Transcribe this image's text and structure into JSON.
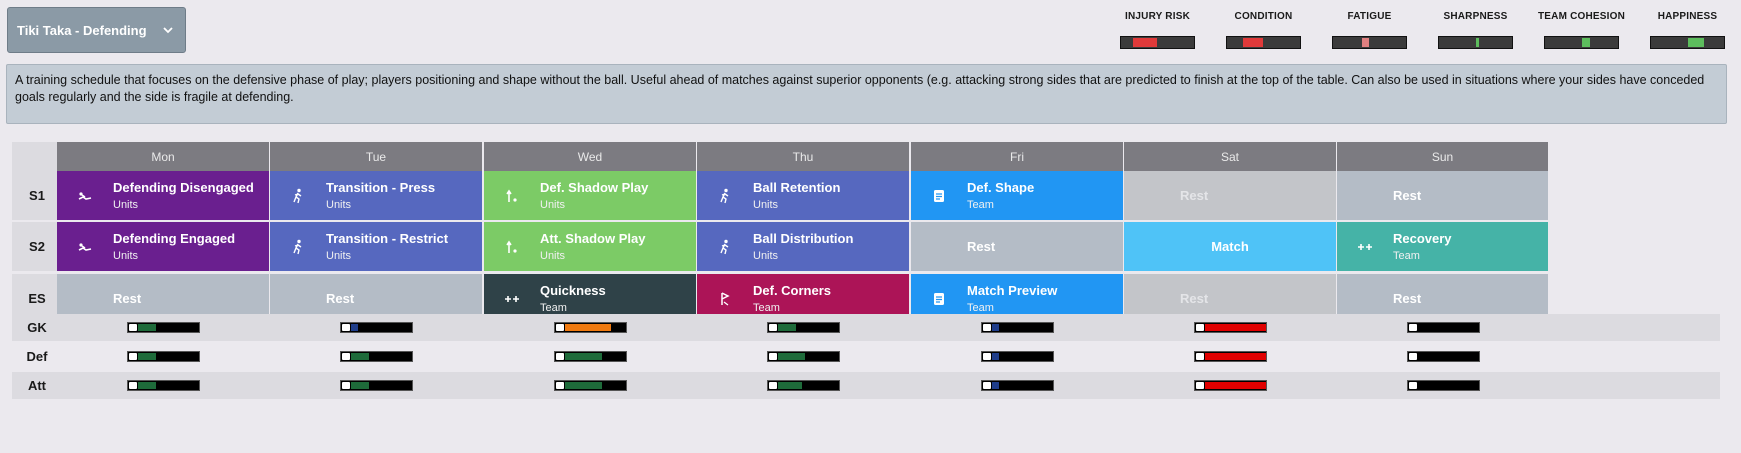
{
  "schedule_selector": {
    "label": "Tiki Taka - Defending"
  },
  "metrics": [
    {
      "label": "INJURY RISK",
      "segments": [
        {
          "from": 0.17,
          "to": 0.5,
          "color": "#e03a3a"
        }
      ]
    },
    {
      "label": "CONDITION",
      "segments": [
        {
          "from": 0.22,
          "to": 0.5,
          "color": "#e03a3a"
        }
      ]
    },
    {
      "label": "FATIGUE",
      "segments": [
        {
          "from": 0.4,
          "to": 0.5,
          "color": "#e08080"
        }
      ]
    },
    {
      "label": "SHARPNESS",
      "segments": [
        {
          "from": 0.5,
          "to": 0.55,
          "color": "#5dbd5d"
        }
      ]
    },
    {
      "label": "TEAM COHESION",
      "segments": [
        {
          "from": 0.5,
          "to": 0.62,
          "color": "#5dbd5d"
        }
      ]
    },
    {
      "label": "HAPPINESS",
      "segments": [
        {
          "from": 0.5,
          "to": 0.72,
          "color": "#5dbd5d"
        }
      ]
    }
  ],
  "description": "A training schedule that focuses on the defensive phase of play; players positioning and shape without the ball. Useful ahead of matches against superior opponents (e.g. attacking strong sides that are predicted to finish at the top of the table. Can also be used in situations where your sides have conceded goals regularly and the side is fragile at defending.",
  "days": [
    "Mon",
    "Tue",
    "Wed",
    "Thu",
    "Fri",
    "Sat",
    "Sun"
  ],
  "session_rows": [
    {
      "label": "S1",
      "cells": [
        {
          "title": "Defending Disengaged",
          "sub": "Units",
          "icon": "defending-icon",
          "color": "#6a1f8f"
        },
        {
          "title": "Transition - Press",
          "sub": "Units",
          "icon": "running-player-icon",
          "color": "#5668bf"
        },
        {
          "title": "Def. Shadow Play",
          "sub": "Units",
          "icon": "shadow-play-icon",
          "color": "#7ccb66"
        },
        {
          "title": "Ball Retention",
          "sub": "Units",
          "icon": "running-player-icon",
          "color": "#5668bf"
        },
        {
          "title": "Def. Shape",
          "sub": "Team",
          "icon": "tactics-board-icon",
          "color": "#2196f3"
        },
        {
          "title": "Rest",
          "sub": "",
          "icon": "",
          "color": "#c3c5c9",
          "textColor": "#e4e5e8"
        },
        {
          "title": "Rest",
          "sub": "",
          "icon": "",
          "color": "#b4bcc6"
        }
      ]
    },
    {
      "label": "S2",
      "cells": [
        {
          "title": "Defending Engaged",
          "sub": "Units",
          "icon": "defending-icon",
          "color": "#6a1f8f"
        },
        {
          "title": "Transition - Restrict",
          "sub": "Units",
          "icon": "running-player-icon",
          "color": "#5668bf"
        },
        {
          "title": "Att. Shadow Play",
          "sub": "Units",
          "icon": "shadow-play-icon",
          "color": "#7ccb66"
        },
        {
          "title": "Ball Distribution",
          "sub": "Units",
          "icon": "running-player-icon",
          "color": "#5668bf"
        },
        {
          "title": "Rest",
          "sub": "",
          "icon": "",
          "color": "#b4bcc6"
        },
        {
          "title": "Match",
          "sub": "",
          "icon": "",
          "color": "#4fc3f7",
          "centered": true
        },
        {
          "title": "Recovery",
          "sub": "Team",
          "icon": "recovery-arrows-icon",
          "color": "#45b3a7"
        }
      ]
    },
    {
      "label": "ES",
      "cells": [
        {
          "title": "Rest",
          "sub": "",
          "icon": "",
          "color": "#b4bcc6"
        },
        {
          "title": "Rest",
          "sub": "",
          "icon": "",
          "color": "#b4bcc6"
        },
        {
          "title": "Quickness",
          "sub": "Team",
          "icon": "recovery-arrows-icon",
          "color": "#2f4248"
        },
        {
          "title": "Def. Corners",
          "sub": "Team",
          "icon": "corner-flag-icon",
          "color": "#ac1457"
        },
        {
          "title": "Match Preview",
          "sub": "Team",
          "icon": "tactics-board-icon",
          "color": "#2196f3"
        },
        {
          "title": "Rest",
          "sub": "",
          "icon": "",
          "color": "#c3c5c9",
          "textColor": "#e4e5e8"
        },
        {
          "title": "Rest",
          "sub": "",
          "icon": "",
          "color": "#b4bcc6"
        }
      ]
    }
  ],
  "intensity_rows": [
    {
      "label": "GK",
      "values": [
        {
          "level": 0.3,
          "color": "#1e6b3a"
        },
        {
          "level": 0.12,
          "color": "#1f3d8a"
        },
        {
          "level": 0.75,
          "color": "#f07a10"
        },
        {
          "level": 0.3,
          "color": "#1e6b3a"
        },
        {
          "level": 0.12,
          "color": "#1f3d8a"
        },
        {
          "level": 1.0,
          "color": "#e00000"
        },
        {
          "level": 0,
          "color": "#000000"
        }
      ]
    },
    {
      "label": "Def",
      "values": [
        {
          "level": 0.3,
          "color": "#1e6b3a"
        },
        {
          "level": 0.3,
          "color": "#1e6b3a"
        },
        {
          "level": 0.6,
          "color": "#1e6b3a"
        },
        {
          "level": 0.45,
          "color": "#1e6b3a"
        },
        {
          "level": 0.12,
          "color": "#1f3d8a"
        },
        {
          "level": 1.0,
          "color": "#e00000"
        },
        {
          "level": 0,
          "color": "#000000"
        }
      ]
    },
    {
      "label": "Att",
      "values": [
        {
          "level": 0.3,
          "color": "#1e6b3a"
        },
        {
          "level": 0.3,
          "color": "#1e6b3a"
        },
        {
          "level": 0.6,
          "color": "#1e6b3a"
        },
        {
          "level": 0.4,
          "color": "#1e6b3a"
        },
        {
          "level": 0.12,
          "color": "#1f3d8a"
        },
        {
          "level": 1.0,
          "color": "#e00000"
        },
        {
          "level": 0,
          "color": "#000000"
        }
      ]
    }
  ]
}
